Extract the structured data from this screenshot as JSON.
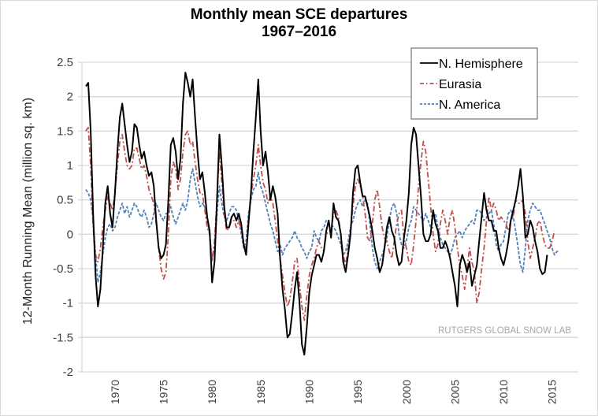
{
  "chart_data": {
    "type": "line",
    "title": "Monthly mean SCE departures",
    "subtitle": "1967–2016",
    "xlabel": "",
    "ylabel": "12-Month Running Mean (million sq. km)",
    "xlim": [
      1966.6,
      2017.7
    ],
    "ylim": [
      -2,
      2.5
    ],
    "yticks": [
      2.5,
      2,
      1.5,
      1,
      0.5,
      0,
      -0.5,
      -1,
      -1.5,
      -2
    ],
    "ytick_labels": [
      "2.5",
      "2",
      "1.5",
      "1",
      "0.5",
      "0",
      "-0.5",
      "-1",
      "-1.5",
      "-2"
    ],
    "xticks": [
      1970,
      1975,
      1980,
      1985,
      1990,
      1995,
      2000,
      2005,
      2010,
      2015
    ],
    "xtick_labels": [
      "1970",
      "1975",
      "1980",
      "1985",
      "1990",
      "1995",
      "2000",
      "2005",
      "2010",
      "2015"
    ],
    "grid": "horizontal",
    "legend_position": "top-right",
    "annotation": "RUTGERS GLOBAL SNOW LAB",
    "x": [
      1967.0,
      1967.25,
      1967.5,
      1967.75,
      1968.0,
      1968.25,
      1968.5,
      1968.75,
      1969.0,
      1969.25,
      1969.5,
      1969.75,
      1970.0,
      1970.25,
      1970.5,
      1970.75,
      1971.0,
      1971.25,
      1971.5,
      1971.75,
      1972.0,
      1972.25,
      1972.5,
      1972.75,
      1973.0,
      1973.25,
      1973.5,
      1973.75,
      1974.0,
      1974.25,
      1974.5,
      1974.75,
      1975.0,
      1975.25,
      1975.5,
      1975.75,
      1976.0,
      1976.25,
      1976.5,
      1976.75,
      1977.0,
      1977.25,
      1977.5,
      1977.75,
      1978.0,
      1978.25,
      1978.5,
      1978.75,
      1979.0,
      1979.25,
      1979.5,
      1979.75,
      1980.0,
      1980.25,
      1980.5,
      1980.75,
      1981.0,
      1981.25,
      1981.5,
      1981.75,
      1982.0,
      1982.25,
      1982.5,
      1982.75,
      1983.0,
      1983.25,
      1983.5,
      1983.75,
      1984.0,
      1984.25,
      1984.5,
      1984.75,
      1985.0,
      1985.25,
      1985.5,
      1985.75,
      1986.0,
      1986.25,
      1986.5,
      1986.75,
      1987.0,
      1987.25,
      1987.5,
      1987.75,
      1988.0,
      1988.25,
      1988.5,
      1988.75,
      1989.0,
      1989.25,
      1989.5,
      1989.75,
      1990.0,
      1990.25,
      1990.5,
      1990.75,
      1991.0,
      1991.25,
      1991.5,
      1991.75,
      1992.0,
      1992.25,
      1992.5,
      1992.75,
      1993.0,
      1993.25,
      1993.5,
      1993.75,
      1994.0,
      1994.25,
      1994.5,
      1994.75,
      1995.0,
      1995.25,
      1995.5,
      1995.75,
      1996.0,
      1996.25,
      1996.5,
      1996.75,
      1997.0,
      1997.25,
      1997.5,
      1997.75,
      1998.0,
      1998.25,
      1998.5,
      1998.75,
      1999.0,
      1999.25,
      1999.5,
      1999.75,
      2000.0,
      2000.25,
      2000.5,
      2000.75,
      2001.0,
      2001.25,
      2001.5,
      2001.75,
      2002.0,
      2002.25,
      2002.5,
      2002.75,
      2003.0,
      2003.25,
      2003.5,
      2003.75,
      2004.0,
      2004.25,
      2004.5,
      2004.75,
      2005.0,
      2005.25,
      2005.5,
      2005.75,
      2006.0,
      2006.25,
      2006.5,
      2006.75,
      2007.0,
      2007.25,
      2007.5,
      2007.75,
      2008.0,
      2008.25,
      2008.5,
      2008.75,
      2009.0,
      2009.25,
      2009.5,
      2009.75,
      2010.0,
      2010.25,
      2010.5,
      2010.75,
      2011.0,
      2011.25,
      2011.5,
      2011.75,
      2012.0,
      2012.25,
      2012.5,
      2012.75,
      2013.0,
      2013.25,
      2013.5,
      2013.75,
      2014.0,
      2014.25,
      2014.5,
      2014.75,
      2015.0,
      2015.25,
      2015.5,
      2015.75,
      2016.0
    ],
    "series": [
      {
        "name": "N. Hemisphere",
        "color": "#000000",
        "dash": "solid",
        "values": [
          2.15,
          2.2,
          1.5,
          0.3,
          -0.6,
          -1.05,
          -0.8,
          -0.2,
          0.45,
          0.7,
          0.3,
          0.1,
          0.6,
          1.2,
          1.7,
          1.9,
          1.6,
          1.3,
          1.05,
          1.2,
          1.6,
          1.55,
          1.3,
          1.1,
          1.2,
          1.0,
          0.85,
          0.9,
          0.7,
          0.2,
          -0.2,
          -0.35,
          -0.3,
          -0.15,
          0.5,
          1.3,
          1.4,
          1.2,
          0.8,
          1.1,
          1.9,
          2.35,
          2.2,
          2.0,
          2.25,
          1.7,
          1.2,
          0.8,
          0.9,
          0.6,
          0.25,
          0.05,
          -0.7,
          -0.4,
          0.5,
          1.45,
          1.0,
          0.4,
          0.1,
          0.1,
          0.25,
          0.3,
          0.2,
          0.3,
          0.15,
          -0.15,
          -0.3,
          0.15,
          0.6,
          1.2,
          1.7,
          2.25,
          1.5,
          1.0,
          1.2,
          0.9,
          0.5,
          0.7,
          0.55,
          0.3,
          -0.35,
          -0.8,
          -1.1,
          -1.5,
          -1.45,
          -1.15,
          -0.8,
          -0.55,
          -1.0,
          -1.6,
          -1.75,
          -1.35,
          -0.85,
          -0.6,
          -0.45,
          -0.3,
          -0.3,
          -0.4,
          -0.25,
          0.05,
          0.2,
          -0.05,
          0.45,
          0.25,
          0.2,
          0.0,
          -0.4,
          -0.55,
          -0.3,
          0.0,
          0.6,
          0.95,
          1.0,
          0.75,
          0.55,
          0.55,
          0.4,
          0.25,
          0.05,
          -0.2,
          -0.35,
          -0.55,
          -0.45,
          -0.2,
          0.1,
          0.25,
          0.05,
          -0.05,
          -0.3,
          -0.45,
          -0.4,
          -0.05,
          0.2,
          0.6,
          1.3,
          1.55,
          1.45,
          1.0,
          0.55,
          0.0,
          -0.1,
          -0.1,
          0.0,
          0.35,
          0.15,
          0.05,
          -0.2,
          -0.2,
          -0.1,
          -0.2,
          -0.35,
          -0.55,
          -0.75,
          -1.05,
          -0.45,
          -0.3,
          -0.4,
          -0.55,
          -0.4,
          -0.75,
          -0.6,
          -0.45,
          -0.1,
          0.25,
          0.6,
          0.35,
          0.2,
          0.2,
          0.05,
          0.05,
          -0.2,
          -0.35,
          -0.45,
          -0.3,
          -0.1,
          0.2,
          0.35,
          0.5,
          0.7,
          0.95,
          0.55,
          -0.05,
          0.0,
          0.2,
          0.1,
          -0.1,
          -0.25,
          -0.5,
          -0.58,
          -0.55,
          -0.3
        ]
      },
      {
        "name": "Eurasia",
        "color": "#c0504d",
        "dash": "dash-dot",
        "values": [
          1.5,
          1.55,
          1.0,
          0.1,
          -0.3,
          -0.4,
          -0.2,
          0.1,
          0.35,
          0.55,
          0.45,
          0.35,
          0.6,
          1.0,
          1.35,
          1.45,
          1.2,
          1.0,
          0.95,
          1.0,
          1.25,
          1.25,
          1.1,
          0.95,
          1.0,
          0.85,
          0.65,
          0.55,
          0.45,
          0.15,
          -0.2,
          -0.5,
          -0.65,
          -0.55,
          0.0,
          0.8,
          1.05,
          0.95,
          0.65,
          0.8,
          1.2,
          1.45,
          1.5,
          1.3,
          1.35,
          1.05,
          0.8,
          0.6,
          0.6,
          0.35,
          0.1,
          0.0,
          -0.4,
          -0.1,
          0.5,
          1.2,
          0.75,
          0.3,
          0.05,
          0.1,
          0.2,
          0.2,
          0.1,
          0.2,
          0.05,
          -0.1,
          -0.25,
          0.2,
          0.55,
          0.8,
          1.0,
          1.3,
          1.0,
          0.75,
          0.65,
          0.45,
          0.55,
          0.45,
          0.2,
          -0.1,
          -0.35,
          -0.6,
          -0.85,
          -1.05,
          -0.95,
          -0.7,
          -0.4,
          -0.35,
          -0.75,
          -1.05,
          -1.25,
          -0.9,
          -0.6,
          -0.45,
          -0.35,
          -0.2,
          -0.1,
          -0.2,
          -0.25,
          0.0,
          0.05,
          0.05,
          0.3,
          0.35,
          0.25,
          0.0,
          -0.3,
          -0.45,
          -0.2,
          0.05,
          0.4,
          0.7,
          0.8,
          0.7,
          0.55,
          0.3,
          -0.05,
          -0.1,
          0.15,
          0.5,
          0.65,
          0.4,
          0.1,
          -0.05,
          -0.1,
          -0.25,
          -0.35,
          -0.1,
          0.15,
          0.3,
          0.35,
          -0.05,
          -0.2,
          -0.4,
          -0.45,
          -0.15,
          0.2,
          0.7,
          1.05,
          1.35,
          1.2,
          0.8,
          0.4,
          0.0,
          -0.25,
          -0.15,
          0.15,
          0.35,
          0.2,
          0.0,
          0.25,
          0.35,
          0.1,
          -0.2,
          -0.45,
          -0.6,
          -0.8,
          -0.5,
          -0.2,
          -0.4,
          -0.55,
          -1.0,
          -0.85,
          -0.5,
          -0.2,
          0.2,
          0.55,
          0.35,
          0.45,
          0.35,
          0.2,
          0.25,
          0.2,
          0.15,
          0.05,
          0.2,
          0.25,
          0.5,
          0.45,
          0.45,
          0.5,
          0.3,
          -0.1,
          -0.35,
          -0.2,
          -0.05,
          0.15,
          0.2,
          0.0,
          -0.15,
          -0.2,
          -0.2,
          -0.1,
          0.05
        ]
      },
      {
        "name": "N. America",
        "color": "#4f81bd",
        "dash": "dashed",
        "values": [
          0.65,
          0.6,
          0.5,
          0.2,
          -0.3,
          -0.7,
          -0.55,
          -0.3,
          -0.05,
          0.1,
          0.15,
          0.05,
          0.1,
          0.25,
          0.35,
          0.45,
          0.3,
          0.4,
          0.25,
          0.35,
          0.45,
          0.4,
          0.3,
          0.25,
          0.35,
          0.25,
          0.1,
          0.15,
          0.3,
          0.45,
          0.35,
          0.25,
          0.2,
          0.3,
          0.3,
          0.4,
          0.25,
          0.15,
          0.25,
          0.35,
          0.45,
          0.35,
          0.5,
          0.8,
          0.95,
          0.75,
          0.55,
          0.4,
          0.45,
          0.4,
          0.2,
          0.0,
          -0.35,
          -0.2,
          0.3,
          0.7,
          0.45,
          0.25,
          0.2,
          0.3,
          0.4,
          0.4,
          0.35,
          0.2,
          0.0,
          -0.2,
          -0.1,
          0.3,
          0.5,
          0.65,
          0.7,
          0.9,
          0.7,
          0.6,
          0.45,
          0.3,
          0.15,
          0.05,
          -0.1,
          -0.25,
          -0.15,
          -0.3,
          -0.2,
          -0.15,
          -0.1,
          -0.05,
          0.05,
          -0.05,
          -0.1,
          -0.2,
          -0.25,
          -0.35,
          -0.25,
          -0.2,
          0.05,
          -0.05,
          -0.1,
          0.05,
          0.1,
          0.2,
          0.15,
          0.15,
          0.1,
          0.05,
          -0.05,
          -0.15,
          -0.3,
          -0.25,
          -0.1,
          0.1,
          0.2,
          0.35,
          0.45,
          0.5,
          0.4,
          0.5,
          0.45,
          0.15,
          -0.2,
          -0.4,
          -0.5,
          -0.4,
          -0.3,
          -0.2,
          -0.05,
          0.2,
          0.4,
          0.45,
          0.3,
          0.0,
          -0.15,
          -0.2,
          -0.1,
          0.1,
          0.2,
          0.4,
          0.35,
          0.3,
          0.25,
          0.2,
          0.3,
          0.2,
          0.1,
          0.25,
          0.3,
          0.1,
          -0.05,
          -0.15,
          -0.2,
          -0.25,
          -0.3,
          -0.2,
          -0.05,
          0.0,
          0.05,
          -0.05,
          0.05,
          0.1,
          0.15,
          0.2,
          0.15,
          0.35,
          0.35,
          0.3,
          0.2,
          0.25,
          0.3,
          0.35,
          0.15,
          -0.15,
          -0.25,
          -0.15,
          -0.1,
          0.1,
          0.3,
          0.35,
          0.25,
          0.05,
          -0.2,
          -0.45,
          -0.55,
          -0.2,
          0.2,
          0.35,
          0.45,
          0.4,
          0.35,
          0.35,
          0.25,
          0.15,
          0.05,
          -0.05,
          -0.2,
          -0.3,
          -0.25,
          -0.25
        ]
      }
    ]
  }
}
